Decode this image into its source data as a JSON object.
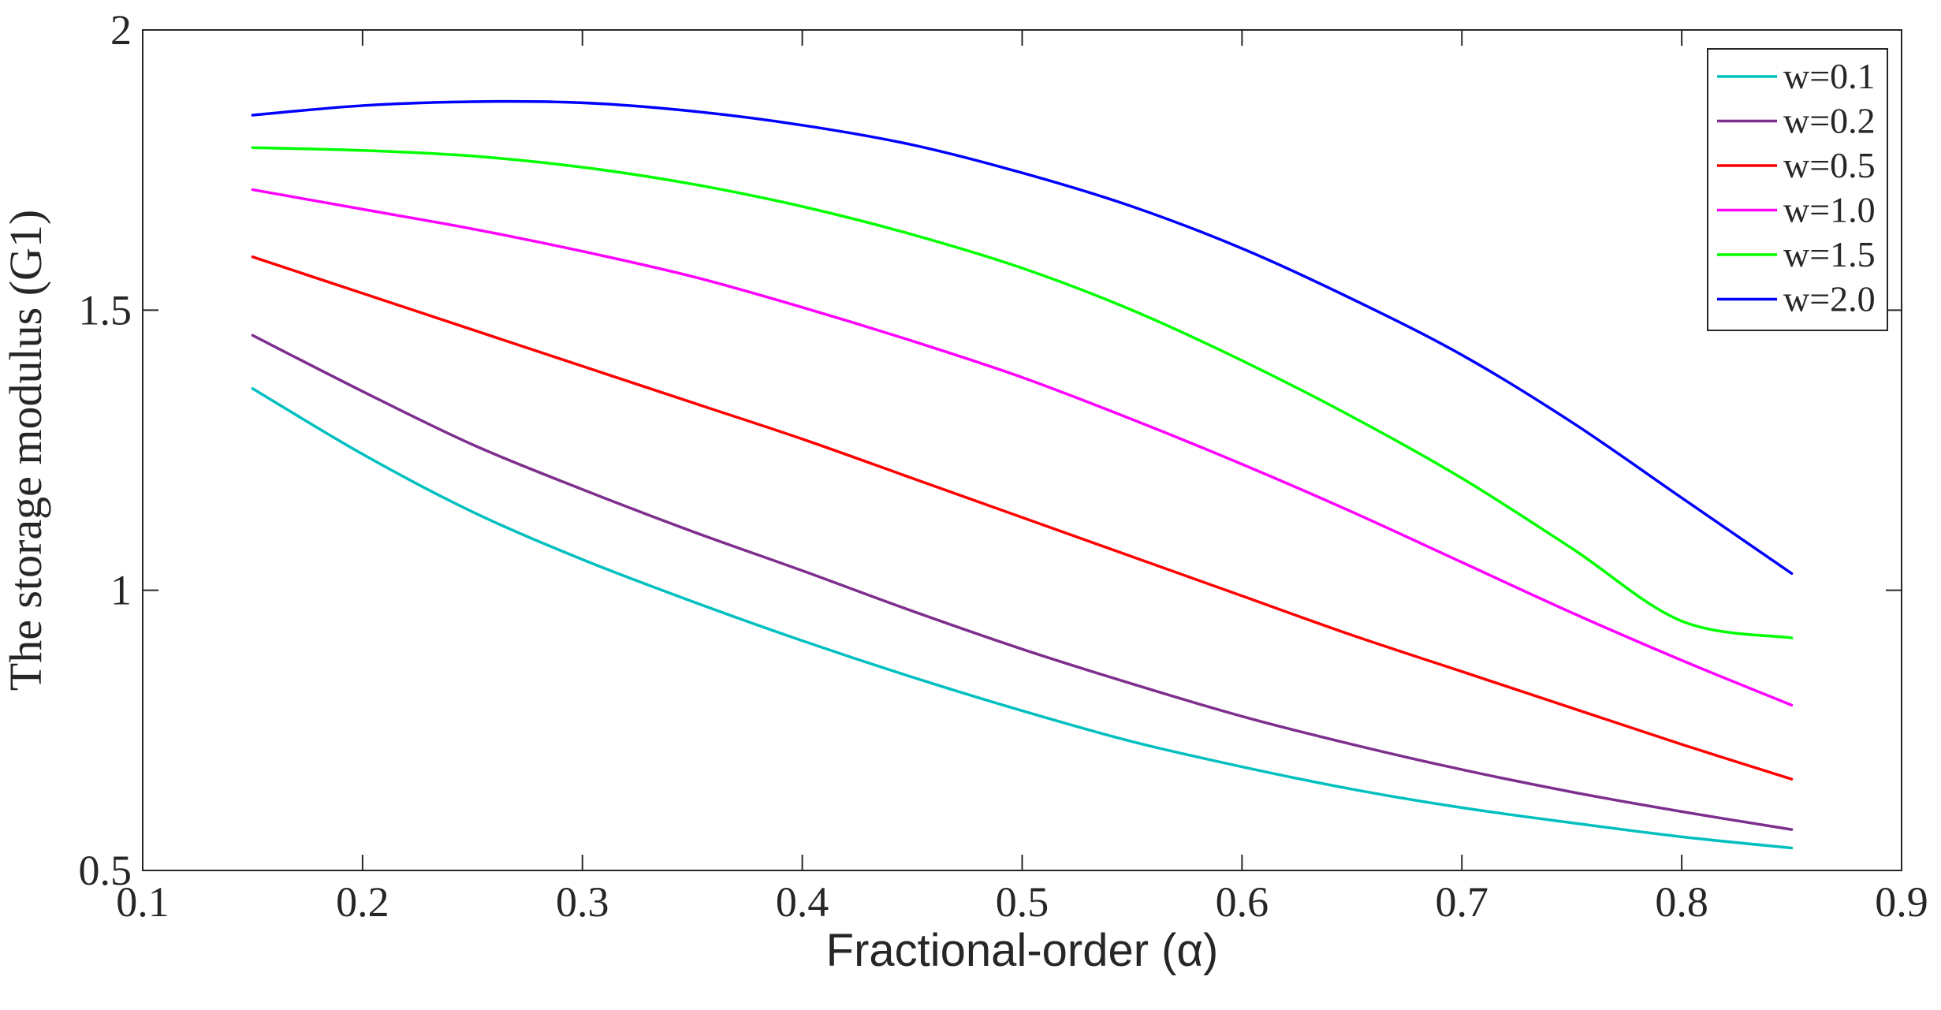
{
  "chart_data": {
    "type": "line",
    "title": "",
    "xlabel": "Fractional-order (α)",
    "ylabel": "The storage modulus (G1)",
    "xlim": [
      0.1,
      0.9
    ],
    "ylim": [
      0.5,
      2.0
    ],
    "x_ticks": [
      "0.1",
      "0.2",
      "0.3",
      "0.4",
      "0.5",
      "0.6",
      "0.7",
      "0.8",
      "0.9"
    ],
    "y_ticks": [
      "0.5",
      "1",
      "1.5",
      "2"
    ],
    "grid": false,
    "legend_position": "top-right",
    "x": [
      0.15,
      0.2,
      0.25,
      0.3,
      0.35,
      0.4,
      0.45,
      0.5,
      0.55,
      0.6,
      0.65,
      0.7,
      0.75,
      0.8,
      0.85
    ],
    "series": [
      {
        "name": "w=0.1",
        "color": "#00BFBF",
        "values": [
          1.36,
          1.243,
          1.14,
          1.055,
          0.98,
          0.91,
          0.845,
          0.785,
          0.73,
          0.685,
          0.645,
          0.612,
          0.585,
          0.56,
          0.54
        ]
      },
      {
        "name": "w=0.2",
        "color": "#7E2F8E",
        "values": [
          1.455,
          1.355,
          1.26,
          1.18,
          1.105,
          1.035,
          0.963,
          0.895,
          0.833,
          0.775,
          0.725,
          0.68,
          0.64,
          0.605,
          0.573
        ]
      },
      {
        "name": "w=0.5",
        "color": "#FF0000",
        "values": [
          1.595,
          1.53,
          1.465,
          1.4,
          1.335,
          1.27,
          1.2,
          1.13,
          1.06,
          0.99,
          0.92,
          0.855,
          0.79,
          0.725,
          0.663
        ]
      },
      {
        "name": "w=1.0",
        "color": "#FF00FF",
        "values": [
          1.715,
          1.68,
          1.645,
          1.605,
          1.56,
          1.505,
          1.445,
          1.38,
          1.305,
          1.225,
          1.14,
          1.05,
          0.96,
          0.875,
          0.795
        ]
      },
      {
        "name": "w=1.5",
        "color": "#00FF00",
        "values": [
          1.79,
          1.785,
          1.775,
          1.755,
          1.725,
          1.685,
          1.635,
          1.575,
          1.5,
          1.41,
          1.31,
          1.2,
          1.075,
          0.945,
          0.915
        ]
      },
      {
        "name": "w=2.0",
        "color": "#0000FF",
        "values": [
          1.848,
          1.865,
          1.872,
          1.87,
          1.855,
          1.83,
          1.795,
          1.745,
          1.685,
          1.61,
          1.52,
          1.42,
          1.3,
          1.165,
          1.03
        ]
      }
    ]
  }
}
